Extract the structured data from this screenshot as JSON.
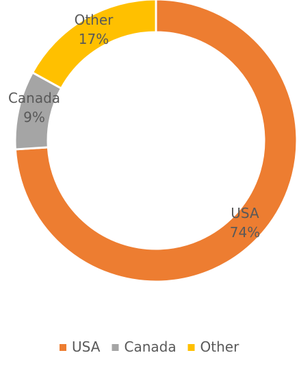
{
  "chart_data": {
    "type": "pie",
    "style": "donut",
    "legend_position": "bottom",
    "slices": [
      {
        "name": "USA",
        "value": 74,
        "label": "74%",
        "color": "#ED7D31"
      },
      {
        "name": "Canada",
        "value": 9,
        "label": "9%",
        "color": "#A5A5A5"
      },
      {
        "name": "Other",
        "value": 17,
        "label": "17%",
        "color": "#FFC000"
      }
    ]
  }
}
